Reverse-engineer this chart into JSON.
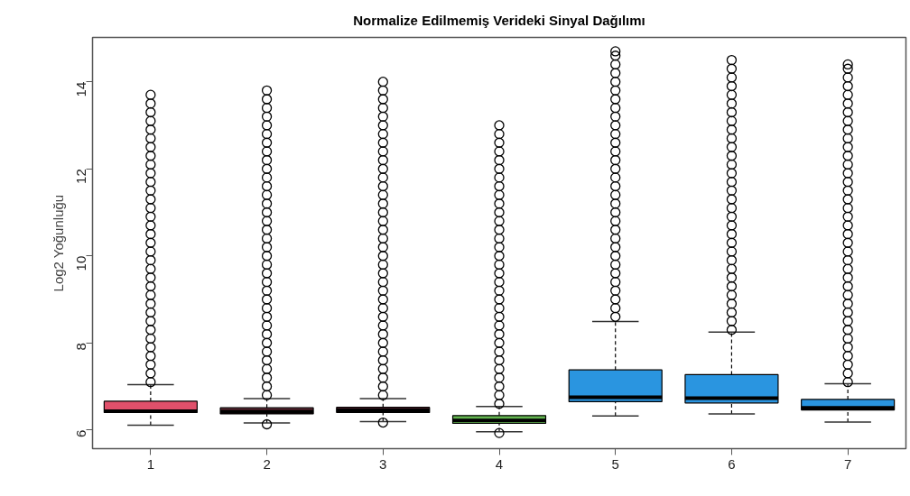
{
  "chart_data": {
    "type": "box",
    "title": "Normalize Edilmemiş Verideki Sinyal Dağılımı",
    "ylabel": "Log2 Yoğunluğu",
    "categories": [
      "1",
      "2",
      "3",
      "4",
      "5",
      "6",
      "7"
    ],
    "colors": [
      "#e0506b",
      "#5c2430",
      "#5c2430",
      "#63b54f",
      "#2a95e0",
      "#2a95e0",
      "#2a95e0"
    ],
    "ylim": [
      5.57,
      15.02
    ],
    "yticks": [
      6,
      8,
      10,
      12,
      14
    ],
    "grid": false,
    "boxes": [
      {
        "low": 6.11,
        "q1": 6.4,
        "median": 6.43,
        "q3": 6.66,
        "high": 7.04,
        "outliers": [
          7.1,
          7.3,
          7.5,
          7.7,
          7.9,
          8.1,
          8.3,
          8.5,
          8.7,
          8.9,
          9.1,
          9.3,
          9.5,
          9.7,
          9.9,
          10.1,
          10.3,
          10.5,
          10.7,
          10.9,
          11.1,
          11.3,
          11.5,
          11.7,
          11.9,
          12.1,
          12.3,
          12.5,
          12.7,
          12.9,
          13.1,
          13.3,
          13.5,
          13.7
        ]
      },
      {
        "low": 6.16,
        "q1": 6.37,
        "median": 6.42,
        "q3": 6.51,
        "high": 6.72,
        "outliers": [
          6.13,
          6.8,
          7,
          7.2,
          7.4,
          7.6,
          7.8,
          8,
          8.2,
          8.4,
          8.6,
          8.8,
          9,
          9.2,
          9.4,
          9.6,
          9.8,
          10,
          10.2,
          10.4,
          10.6,
          10.8,
          11,
          11.2,
          11.4,
          11.6,
          11.8,
          12,
          12.2,
          12.4,
          12.6,
          12.8,
          13,
          13.2,
          13.4,
          13.6,
          13.8
        ]
      },
      {
        "low": 6.19,
        "q1": 6.4,
        "median": 6.45,
        "q3": 6.52,
        "high": 6.72,
        "outliers": [
          6.17,
          6.8,
          7,
          7.2,
          7.4,
          7.6,
          7.8,
          8,
          8.2,
          8.4,
          8.6,
          8.8,
          9,
          9.2,
          9.4,
          9.6,
          9.8,
          10,
          10.2,
          10.4,
          10.6,
          10.8,
          11,
          11.2,
          11.4,
          11.6,
          11.8,
          12,
          12.2,
          12.4,
          12.6,
          12.8,
          13,
          13.2,
          13.4,
          13.6,
          13.8,
          14
        ]
      },
      {
        "low": 5.96,
        "q1": 6.15,
        "median": 6.22,
        "q3": 6.33,
        "high": 6.54,
        "outliers": [
          5.93,
          6.6,
          6.8,
          7,
          7.2,
          7.4,
          7.6,
          7.8,
          8,
          8.2,
          8.4,
          8.6,
          8.8,
          9,
          9.2,
          9.4,
          9.6,
          9.8,
          10,
          10.2,
          10.4,
          10.6,
          10.8,
          11,
          11.2,
          11.4,
          11.6,
          11.8,
          12,
          12.2,
          12.4,
          12.6,
          12.8,
          13
        ]
      },
      {
        "low": 6.32,
        "q1": 6.65,
        "median": 6.75,
        "q3": 7.38,
        "high": 8.49,
        "outliers": [
          8.6,
          8.8,
          9,
          9.2,
          9.4,
          9.6,
          9.8,
          10,
          10.2,
          10.4,
          10.6,
          10.8,
          11,
          11.2,
          11.4,
          11.6,
          11.8,
          12,
          12.2,
          12.4,
          12.6,
          12.8,
          13,
          13.2,
          13.4,
          13.6,
          13.8,
          14,
          14.2,
          14.4,
          14.6,
          14.7
        ]
      },
      {
        "low": 6.37,
        "q1": 6.62,
        "median": 6.73,
        "q3": 7.27,
        "high": 8.25,
        "outliers": [
          8.3,
          8.5,
          8.7,
          8.9,
          9.1,
          9.3,
          9.5,
          9.7,
          9.9,
          10.1,
          10.3,
          10.5,
          10.7,
          10.9,
          11.1,
          11.3,
          11.5,
          11.7,
          11.9,
          12.1,
          12.3,
          12.5,
          12.7,
          12.9,
          13.1,
          13.3,
          13.5,
          13.7,
          13.9,
          14.1,
          14.3,
          14.5
        ]
      },
      {
        "low": 6.18,
        "q1": 6.46,
        "median": 6.51,
        "q3": 6.7,
        "high": 7.06,
        "outliers": [
          7.1,
          7.3,
          7.5,
          7.7,
          7.9,
          8.1,
          8.3,
          8.5,
          8.7,
          8.9,
          9.1,
          9.3,
          9.5,
          9.7,
          9.9,
          10.1,
          10.3,
          10.5,
          10.7,
          10.9,
          11.1,
          11.3,
          11.5,
          11.7,
          11.9,
          12.1,
          12.3,
          12.5,
          12.7,
          12.9,
          13.1,
          13.3,
          13.5,
          13.7,
          13.9,
          14.1,
          14.3,
          14.4
        ]
      }
    ]
  }
}
